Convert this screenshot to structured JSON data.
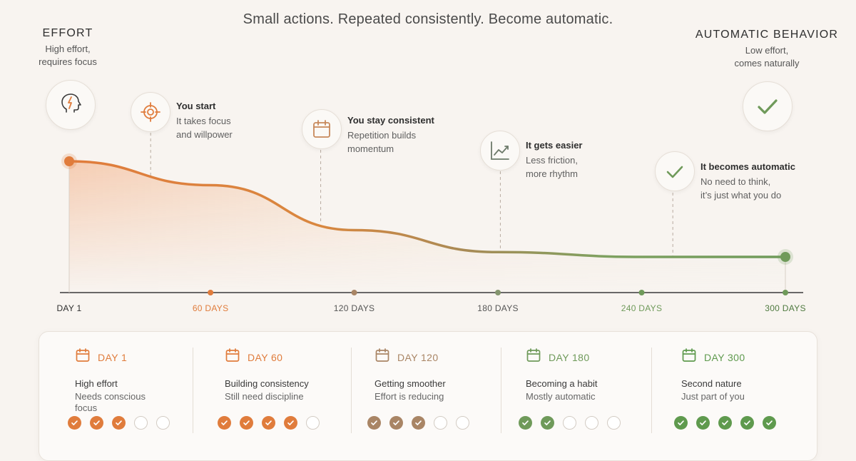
{
  "subtitle": "Small actions. Repeated consistently. Become automatic.",
  "colors": {
    "orange": "#e07c3c",
    "brown": "#a98565",
    "green": "#6f9a5a",
    "muted": "#d3ccc4"
  },
  "effort": {
    "heading": "EFFORT",
    "sub1": "High effort,",
    "sub2": "requires focus",
    "icon": "head-lightning-icon"
  },
  "automatic": {
    "heading": "AUTOMATIC BEHAVIOR",
    "sub1": "Low effort,",
    "sub2": "comes naturally",
    "icon": "check-icon"
  },
  "milestones": [
    {
      "icon": "target-icon",
      "title": "You start",
      "desc1": "It takes focus",
      "desc2": "and willpower"
    },
    {
      "icon": "calendar-icon",
      "title": "You stay consistent",
      "desc1": "Repetition builds",
      "desc2": "momentum"
    },
    {
      "icon": "chart-up-icon",
      "title": "It gets easier",
      "desc1": "Less friction,",
      "desc2": "more rhythm"
    },
    {
      "icon": "check-icon",
      "title": "It becomes automatic",
      "desc1": "No need to think,",
      "desc2": "it’s just what you do"
    }
  ],
  "chart_data": {
    "type": "area",
    "x_labels": [
      "DAY 1",
      "60 DAYS",
      "120 DAYS",
      "180 DAYS",
      "240 DAYS",
      "300 DAYS"
    ],
    "x_values": [
      1,
      60,
      120,
      180,
      240,
      300
    ],
    "series": [
      {
        "x": [
          1,
          60,
          120,
          180,
          240,
          300
        ],
        "y": [
          1.0,
          0.75,
          0.28,
          0.05,
          0.0,
          0.0
        ]
      }
    ],
    "milestone_days": [
      35,
      106,
      181,
      253
    ]
  },
  "stages": [
    {
      "day": "DAY 1",
      "line1": "High effort",
      "line2": "Needs conscious focus",
      "checked": 3,
      "color": "#e07c3c"
    },
    {
      "day": "DAY 60",
      "line1": "Building consistency",
      "line2": "Still need discipline",
      "checked": 4,
      "color": "#e07c3c"
    },
    {
      "day": "DAY 120",
      "line1": "Getting smoother",
      "line2": "Effort is reducing",
      "checked": 3,
      "color": "#a98565"
    },
    {
      "day": "DAY 180",
      "line1": "Becoming a habit",
      "line2": "Mostly automatic",
      "checked": 2,
      "color": "#6f9a5a"
    },
    {
      "day": "DAY 300",
      "line1": "Second nature",
      "line2": "Just part of you",
      "checked": 5,
      "color": "#5f9a4e"
    }
  ]
}
